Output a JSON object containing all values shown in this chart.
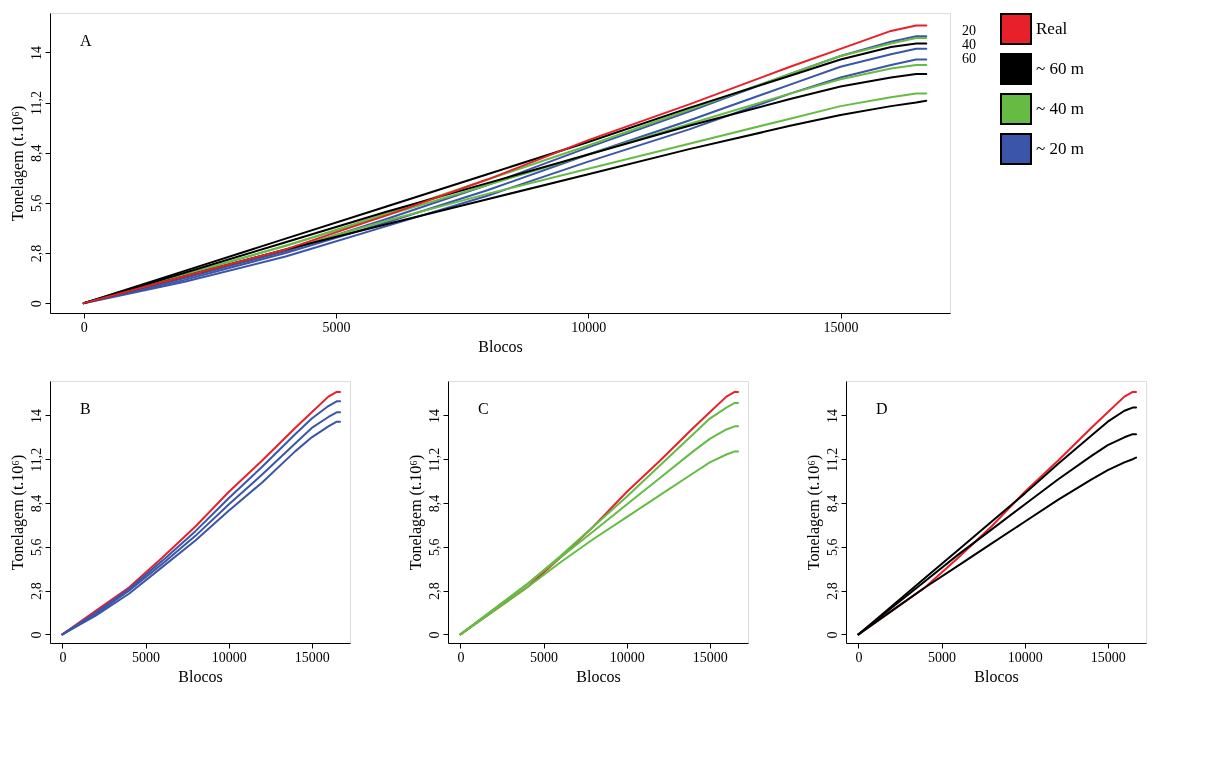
{
  "chart_data": [
    {
      "type": "line",
      "xlabel": "Blocos",
      "ylabel": "Tonelagem (t.10⁶)",
      "annotations": [
        "A",
        "20",
        "40",
        "60"
      ],
      "legend": "right",
      "grid": false,
      "xlim": [
        -670,
        17170
      ],
      "xticks": [
        0,
        5000,
        10000,
        15000
      ],
      "ylim": [
        -0.55,
        16.2
      ],
      "yticks": [
        0,
        {
          "value": 2.8,
          "label": "2,8"
        },
        {
          "value": 5.6,
          "label": "5,6"
        },
        {
          "value": 8.4,
          "label": "8,4"
        },
        {
          "value": 11.2,
          "label": "11,2"
        },
        {
          "value": 14,
          "label": "14"
        }
      ],
      "x": [
        0,
        2000,
        4000,
        6000,
        8000,
        10000,
        12000,
        14000,
        15000,
        16000,
        16500,
        16700
      ],
      "series": [
        {
          "name": "Real",
          "color": "#e8202a",
          "values": [
            0,
            1.5,
            3.0,
            4.9,
            6.9,
            9.1,
            11.1,
            13.2,
            14.2,
            15.2,
            15.5,
            15.5
          ]
        },
        {
          "name": "~ 60 m",
          "color": "#000000",
          "values": [
            0,
            1.8,
            3.6,
            5.4,
            7.2,
            9.0,
            10.9,
            12.7,
            13.6,
            14.3,
            14.5,
            14.5
          ]
        },
        {
          "color": "#000000",
          "values": [
            0,
            1.7,
            3.4,
            5.1,
            6.7,
            8.3,
            9.9,
            11.4,
            12.1,
            12.6,
            12.8,
            12.8
          ]
        },
        {
          "color": "#000000",
          "values": [
            0,
            1.5,
            3.0,
            4.4,
            5.8,
            7.2,
            8.6,
            9.9,
            10.5,
            11.0,
            11.2,
            11.3
          ]
        },
        {
          "name": "~ 40 m",
          "color": "#66bb44",
          "values": [
            0,
            1.6,
            3.2,
            5.0,
            6.9,
            8.8,
            10.8,
            12.8,
            13.8,
            14.5,
            14.8,
            14.8
          ]
        },
        {
          "color": "#66bb44",
          "values": [
            0,
            1.6,
            3.2,
            4.9,
            6.6,
            8.3,
            10.0,
            11.7,
            12.5,
            13.1,
            13.3,
            13.3
          ]
        },
        {
          "color": "#66bb44",
          "values": [
            0,
            1.5,
            3.0,
            4.6,
            6.1,
            7.5,
            8.9,
            10.3,
            11.0,
            11.5,
            11.7,
            11.7
          ]
        },
        {
          "name": "~ 20 m",
          "color": "#3b55a8",
          "values": [
            0,
            1.4,
            2.9,
            4.7,
            6.6,
            8.7,
            10.7,
            12.8,
            13.8,
            14.6,
            14.9,
            14.9
          ]
        },
        {
          "color": "#3b55a8",
          "values": [
            0,
            1.3,
            2.8,
            4.5,
            6.3,
            8.3,
            10.2,
            12.2,
            13.2,
            13.9,
            14.2,
            14.2
          ]
        },
        {
          "color": "#3b55a8",
          "values": [
            0,
            1.2,
            2.6,
            4.3,
            6.0,
            7.9,
            9.7,
            11.7,
            12.6,
            13.3,
            13.6,
            13.6
          ]
        }
      ]
    },
    {
      "type": "line",
      "xlabel": "Blocos",
      "ylabel": "Tonelagem (t.10⁶)",
      "annotations": [
        "B"
      ],
      "grid": false,
      "xlim": [
        -750,
        17300
      ],
      "xticks": [
        0,
        5000,
        10000,
        15000
      ],
      "ylim": [
        -0.55,
        16.2
      ],
      "yticks": [
        0,
        {
          "value": 2.8,
          "label": "2,8"
        },
        {
          "value": 5.6,
          "label": "5,6"
        },
        {
          "value": 8.4,
          "label": "8,4"
        },
        {
          "value": 11.2,
          "label": "11,2"
        },
        {
          "value": 14,
          "label": "14"
        }
      ],
      "x": [
        0,
        2000,
        4000,
        6000,
        8000,
        10000,
        12000,
        14000,
        15000,
        16000,
        16500,
        16700
      ],
      "series": [
        {
          "color": "#3b55a8",
          "values": [
            0,
            1.4,
            2.9,
            4.7,
            6.6,
            8.7,
            10.7,
            12.8,
            13.8,
            14.6,
            14.9,
            14.9
          ]
        },
        {
          "color": "#3b55a8",
          "values": [
            0,
            1.3,
            2.8,
            4.5,
            6.3,
            8.3,
            10.2,
            12.2,
            13.2,
            13.9,
            14.2,
            14.2
          ]
        },
        {
          "color": "#3b55a8",
          "values": [
            0,
            1.2,
            2.6,
            4.3,
            6.0,
            7.9,
            9.7,
            11.7,
            12.6,
            13.3,
            13.6,
            13.6
          ]
        },
        {
          "color": "#e8202a",
          "values": [
            0,
            1.5,
            3.0,
            4.9,
            6.9,
            9.1,
            11.1,
            13.2,
            14.2,
            15.2,
            15.5,
            15.5
          ]
        }
      ]
    },
    {
      "type": "line",
      "xlabel": "Blocos",
      "ylabel": "Tonelagem (t.10⁶)",
      "annotations": [
        "C"
      ],
      "grid": false,
      "xlim": [
        -750,
        17300
      ],
      "xticks": [
        0,
        5000,
        10000,
        15000
      ],
      "ylim": [
        -0.55,
        16.2
      ],
      "yticks": [
        0,
        {
          "value": 2.8,
          "label": "2,8"
        },
        {
          "value": 5.6,
          "label": "5,6"
        },
        {
          "value": 8.4,
          "label": "8,4"
        },
        {
          "value": 11.2,
          "label": "11,2"
        },
        {
          "value": 14,
          "label": "14"
        }
      ],
      "x": [
        0,
        2000,
        4000,
        6000,
        8000,
        10000,
        12000,
        14000,
        15000,
        16000,
        16500,
        16700
      ],
      "series": [
        {
          "color": "#66bb44",
          "values": [
            0,
            1.6,
            3.2,
            5.0,
            6.9,
            8.8,
            10.8,
            12.8,
            13.8,
            14.5,
            14.8,
            14.8
          ]
        },
        {
          "color": "#66bb44",
          "values": [
            0,
            1.6,
            3.2,
            4.9,
            6.6,
            8.3,
            10.0,
            11.7,
            12.5,
            13.1,
            13.3,
            13.3
          ]
        },
        {
          "color": "#66bb44",
          "values": [
            0,
            1.5,
            3.0,
            4.6,
            6.1,
            7.5,
            8.9,
            10.3,
            11.0,
            11.5,
            11.7,
            11.7
          ]
        },
        {
          "color": "#e8202a",
          "values": [
            0,
            1.5,
            3.0,
            4.9,
            6.9,
            9.1,
            11.1,
            13.2,
            14.2,
            15.2,
            15.5,
            15.5
          ]
        }
      ]
    },
    {
      "type": "line",
      "xlabel": "Blocos",
      "ylabel": "Tonelagem (t.10⁶)",
      "annotations": [
        "D"
      ],
      "grid": false,
      "xlim": [
        -750,
        17300
      ],
      "xticks": [
        0,
        5000,
        10000,
        15000
      ],
      "ylim": [
        -0.55,
        16.2
      ],
      "yticks": [
        0,
        {
          "value": 2.8,
          "label": "2,8"
        },
        {
          "value": 5.6,
          "label": "5,6"
        },
        {
          "value": 8.4,
          "label": "8,4"
        },
        {
          "value": 11.2,
          "label": "11,2"
        },
        {
          "value": 14,
          "label": "14"
        }
      ],
      "x": [
        0,
        2000,
        4000,
        6000,
        8000,
        10000,
        12000,
        14000,
        15000,
        16000,
        16500,
        16700
      ],
      "series": [
        {
          "color": "#000000",
          "values": [
            0,
            1.8,
            3.6,
            5.4,
            7.2,
            9.0,
            10.9,
            12.7,
            13.6,
            14.3,
            14.5,
            14.5
          ]
        },
        {
          "color": "#000000",
          "values": [
            0,
            1.7,
            3.4,
            5.1,
            6.7,
            8.3,
            9.9,
            11.4,
            12.1,
            12.6,
            12.8,
            12.8
          ]
        },
        {
          "color": "#000000",
          "values": [
            0,
            1.5,
            3.0,
            4.4,
            5.8,
            7.2,
            8.6,
            9.9,
            10.5,
            11.0,
            11.2,
            11.3
          ]
        },
        {
          "color": "#e8202a",
          "values": [
            0,
            1.5,
            3.0,
            4.9,
            6.9,
            9.1,
            11.1,
            13.2,
            14.2,
            15.2,
            15.5,
            15.5
          ]
        }
      ]
    }
  ]
}
